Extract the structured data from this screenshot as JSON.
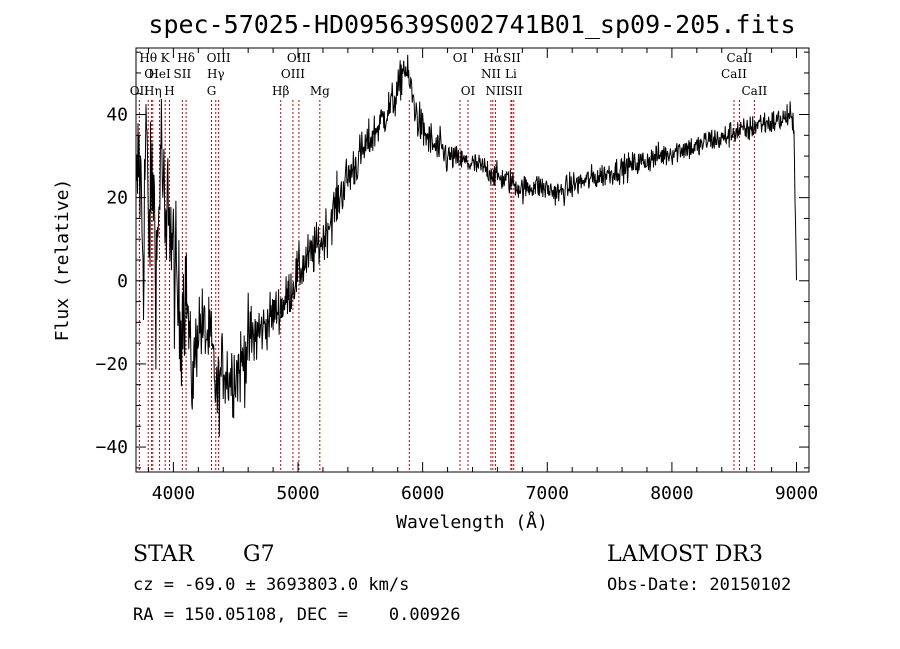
{
  "chart_data": {
    "type": "line",
    "title": "spec-57025-HD095639S002741B01_sp09-205.fits",
    "xlabel": "Wavelength (Å)",
    "ylabel": "Flux (relative)",
    "xlim": [
      3700,
      9100
    ],
    "ylim": [
      -46,
      56
    ],
    "xticks": [
      4000,
      5000,
      6000,
      7000,
      8000,
      9000
    ],
    "yticks": [
      -40,
      -20,
      0,
      20,
      40
    ],
    "grid": false,
    "legend": "none",
    "series": [
      {
        "line_color": "#000000",
        "x": [
          3700,
          3720,
          3740,
          3760,
          3780,
          3800,
          3820,
          3840,
          3860,
          3880,
          3900,
          3920,
          3940,
          3960,
          3980,
          4000,
          4050,
          4100,
          4150,
          4200,
          4250,
          4300,
          4350,
          4400,
          4450,
          4500,
          4550,
          4600,
          4700,
          4800,
          4900,
          5000,
          5100,
          5200,
          5300,
          5400,
          5500,
          5600,
          5700,
          5800,
          5850,
          5900,
          5950,
          6000,
          6100,
          6200,
          6300,
          6400,
          6500,
          6550,
          6600,
          6700,
          6800,
          6900,
          7000,
          7100,
          7200,
          7300,
          7400,
          7500,
          7600,
          7700,
          7800,
          7900,
          8000,
          8100,
          8200,
          8300,
          8400,
          8500,
          8600,
          8700,
          8800,
          8900,
          8950,
          8980,
          9000
        ],
        "y": [
          15,
          30,
          22,
          5,
          40,
          10,
          20,
          25,
          2,
          12,
          35,
          20,
          5,
          25,
          10,
          5,
          -10,
          0,
          -25,
          -10,
          -12,
          -15,
          -28,
          -20,
          -23,
          -22,
          -20,
          -15,
          -12,
          -8,
          -5,
          2,
          6,
          10,
          18,
          25,
          30,
          35,
          40,
          45,
          52,
          47,
          40,
          36,
          32,
          30,
          29,
          28,
          27,
          26,
          25,
          24,
          22,
          23,
          22,
          21,
          23,
          24,
          25,
          26,
          27,
          28,
          29,
          30,
          31,
          32,
          32,
          34,
          34,
          36,
          36,
          38,
          38,
          39,
          40,
          35,
          3
        ]
      }
    ],
    "line_markers": [
      {
        "label": "Hθ",
        "x": 3798,
        "row": 1
      },
      {
        "label": "OI",
        "x": 3825,
        "row": 2
      },
      {
        "label": "OII",
        "x": 3727,
        "row": 3
      },
      {
        "label": "K",
        "x": 3934,
        "row": 1
      },
      {
        "label": "HeI",
        "x": 3889,
        "row": 2
      },
      {
        "label": "Hη",
        "x": 3835,
        "row": 3
      },
      {
        "label": "H",
        "x": 3969,
        "row": 3
      },
      {
        "label": "Hδ",
        "x": 4102,
        "row": 1
      },
      {
        "label": "SII",
        "x": 4072,
        "row": 2
      },
      {
        "label": "OIII",
        "x": 4363,
        "row": 1
      },
      {
        "label": "Hγ",
        "x": 4340,
        "row": 2
      },
      {
        "label": "G",
        "x": 4306,
        "row": 3
      },
      {
        "label": "Hβ",
        "x": 4861,
        "row": 3
      },
      {
        "label": "OIII",
        "x": 5007,
        "row": 1
      },
      {
        "label": "OIII",
        "x": 4959,
        "row": 2
      },
      {
        "label": "Mg",
        "x": 5175,
        "row": 3
      },
      {
        "label": "",
        "x": 5893,
        "row": 0
      },
      {
        "label": "OI",
        "x": 6300,
        "row": 1
      },
      {
        "label": "OI",
        "x": 6364,
        "row": 3
      },
      {
        "label": "Hα",
        "x": 6563,
        "row": 1
      },
      {
        "label": "SII",
        "x": 6716,
        "row": 1
      },
      {
        "label": "NII",
        "x": 6548,
        "row": 2
      },
      {
        "label": "Li",
        "x": 6708,
        "row": 2
      },
      {
        "label": "NII",
        "x": 6584,
        "row": 3
      },
      {
        "label": "SII",
        "x": 6731,
        "row": 3
      },
      {
        "label": "CaII",
        "x": 8542,
        "row": 1
      },
      {
        "label": "CaII",
        "x": 8498,
        "row": 2
      },
      {
        "label": "CaII",
        "x": 8662,
        "row": 3
      }
    ]
  },
  "info": {
    "object_class": "STAR",
    "subclass": "G7",
    "survey": "LAMOST DR3",
    "redshift_line": "cz = -69.0 ± 3693803.0 km/s",
    "obs_date": "Obs-Date: 20150102",
    "coords": "RA = 150.05108, DEC =    0.00926"
  }
}
